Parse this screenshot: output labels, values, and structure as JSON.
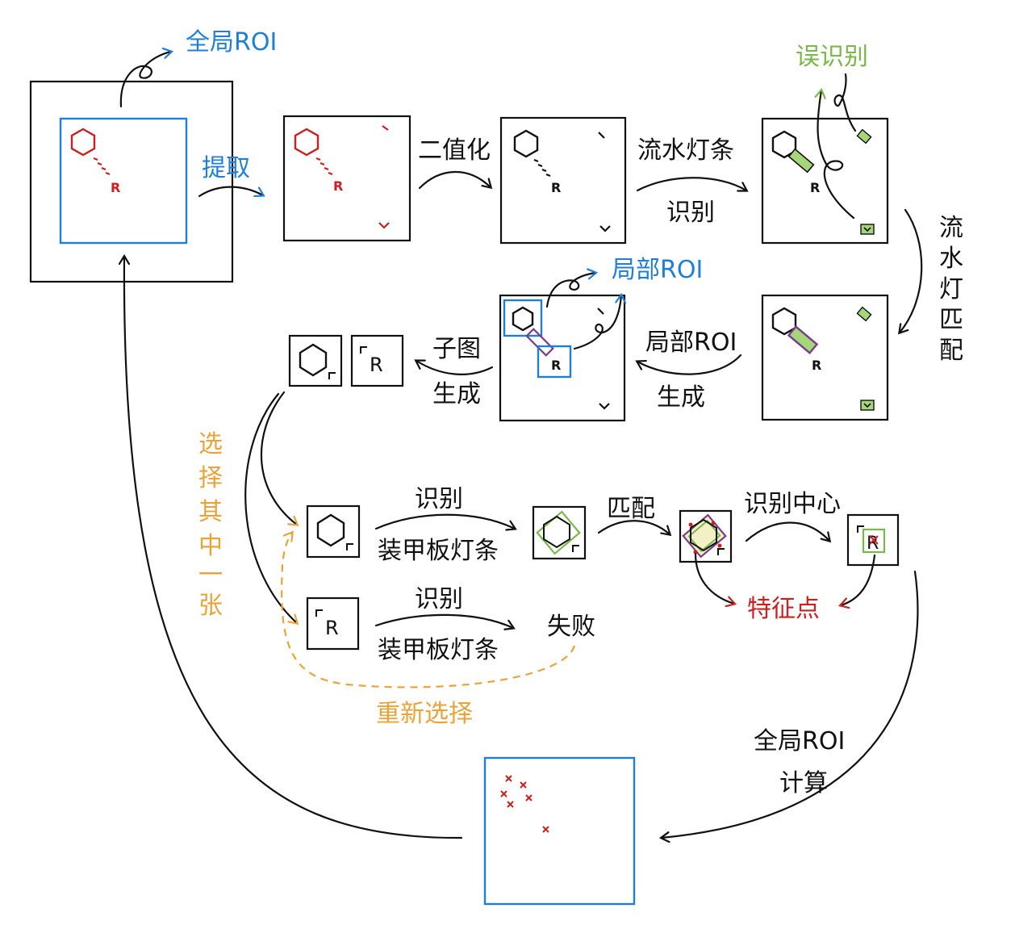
{
  "colors": {
    "ink": "#111111",
    "blue": "#1f7fd8",
    "red": "#cc1f1f",
    "green": "#7ab84a",
    "orange": "#e8a43a",
    "purple": "#7a3c8c"
  },
  "labels": {
    "global_roi": "全局ROI",
    "extract": "提取",
    "binarize": "二值化",
    "light_strip_recog_1": "流水灯条",
    "light_strip_recog_2": "识别",
    "misrecognition": "误识别",
    "light_match": "流水灯匹配",
    "local_roi_gen_1": "局部ROI",
    "local_roi_gen_2": "生成",
    "local_roi": "局部ROI",
    "subimage_gen_1": "子图",
    "subimage_gen_2": "生成",
    "select_one": "选择其中一张",
    "recog_armor_1_a": "识别",
    "recog_armor_1_b": "装甲板灯条",
    "recog_armor_2_a": "识别",
    "recog_armor_2_b": "装甲板灯条",
    "fail": "失败",
    "reselect": "重新选择",
    "match": "匹配",
    "recog_center": "识别中心",
    "feature_points": "特征点",
    "global_roi_calc_1": "全局ROI",
    "global_roi_calc_2": "计算",
    "r_letter": "R"
  }
}
